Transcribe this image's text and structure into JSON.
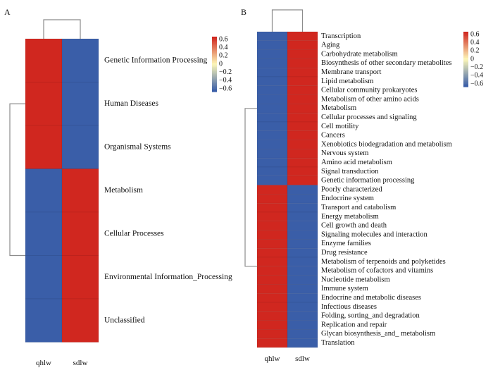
{
  "chart_data": [
    {
      "type": "heatmap",
      "panel_label": "A",
      "columns": [
        "qhlw",
        "sdlw"
      ],
      "rows": [
        "Genetic Information Processing",
        "Human Diseases",
        "Organismal Systems",
        "Metabolism",
        "Cellular Processes",
        "Environmental Information_Processing",
        "Unclassified"
      ],
      "values": [
        [
          0.707,
          -0.707
        ],
        [
          0.707,
          -0.707
        ],
        [
          0.707,
          -0.707
        ],
        [
          -0.707,
          0.707
        ],
        [
          -0.707,
          0.707
        ],
        [
          -0.707,
          0.707
        ],
        [
          -0.707,
          0.707
        ]
      ],
      "colorbar": {
        "ticks": [
          "0.6",
          "0.4",
          "0.2",
          "0",
          "−0.2",
          "−0.4",
          "−0.6"
        ],
        "range": [
          -0.707,
          0.707
        ]
      },
      "colors": {
        "low": "#3a5ea8",
        "mid": "#fdf7b8",
        "high": "#d0271f"
      },
      "row_dendrogram": true,
      "column_dendrogram": true
    },
    {
      "type": "heatmap",
      "panel_label": "B",
      "columns": [
        "qhlw",
        "sdlw"
      ],
      "rows": [
        "Transcription",
        "Aging",
        "Carbohydrate metabolism",
        "Biosynthesis of other secondary metabolites",
        "Membrane transport",
        "Lipid metabolism",
        "Cellular community prokaryotes",
        "Metabolism of other amino acids",
        "Metabolism",
        "Cellular processes and signaling",
        "Cell motility",
        "Cancers",
        "Xenobiotics biodegradation and metabolism",
        "Nervous system",
        "Amino acid metabolism",
        "Signal transduction",
        "Genetic information processing",
        "Poorly characterized",
        "Endocrine system",
        "Transport and catabolism",
        "Energy metabolism",
        "Cell growth and death",
        "Signaling molecules and interaction",
        "Enzyme families",
        "Drug resistance",
        "Metabolism of terpenoids and polyketides",
        "Metabolism of cofactors and vitamins",
        "Nucleotide metabolism",
        "Immune system",
        "Endocrine and metabolic diseases",
        "Infectious diseases",
        "Folding, sorting_and degradation",
        "Replication and repair",
        "Glycan biosynthesis_and_ metabolism",
        "Translation"
      ],
      "values": [
        [
          -0.707,
          0.707
        ],
        [
          -0.707,
          0.707
        ],
        [
          -0.707,
          0.707
        ],
        [
          -0.707,
          0.707
        ],
        [
          -0.707,
          0.707
        ],
        [
          -0.707,
          0.707
        ],
        [
          -0.707,
          0.707
        ],
        [
          -0.707,
          0.707
        ],
        [
          -0.707,
          0.707
        ],
        [
          -0.707,
          0.707
        ],
        [
          -0.707,
          0.707
        ],
        [
          -0.707,
          0.707
        ],
        [
          -0.707,
          0.707
        ],
        [
          -0.707,
          0.707
        ],
        [
          -0.707,
          0.707
        ],
        [
          -0.707,
          0.707
        ],
        [
          -0.707,
          0.707
        ],
        [
          0.707,
          -0.707
        ],
        [
          0.707,
          -0.707
        ],
        [
          0.707,
          -0.707
        ],
        [
          0.707,
          -0.707
        ],
        [
          0.707,
          -0.707
        ],
        [
          0.707,
          -0.707
        ],
        [
          0.707,
          -0.707
        ],
        [
          0.707,
          -0.707
        ],
        [
          0.707,
          -0.707
        ],
        [
          0.707,
          -0.707
        ],
        [
          0.707,
          -0.707
        ],
        [
          0.707,
          -0.707
        ],
        [
          0.707,
          -0.707
        ],
        [
          0.707,
          -0.707
        ],
        [
          0.707,
          -0.707
        ],
        [
          0.707,
          -0.707
        ],
        [
          0.707,
          -0.707
        ],
        [
          0.707,
          -0.707
        ]
      ],
      "colorbar": {
        "ticks": [
          "0.6",
          "0.4",
          "0.2",
          "0",
          "−0.2",
          "−0.4",
          "−0.6"
        ],
        "range": [
          -0.707,
          0.707
        ]
      },
      "colors": {
        "low": "#3a5ea8",
        "mid": "#fdf7b8",
        "high": "#d0271f"
      },
      "row_dendrogram": true,
      "column_dendrogram": true
    }
  ]
}
